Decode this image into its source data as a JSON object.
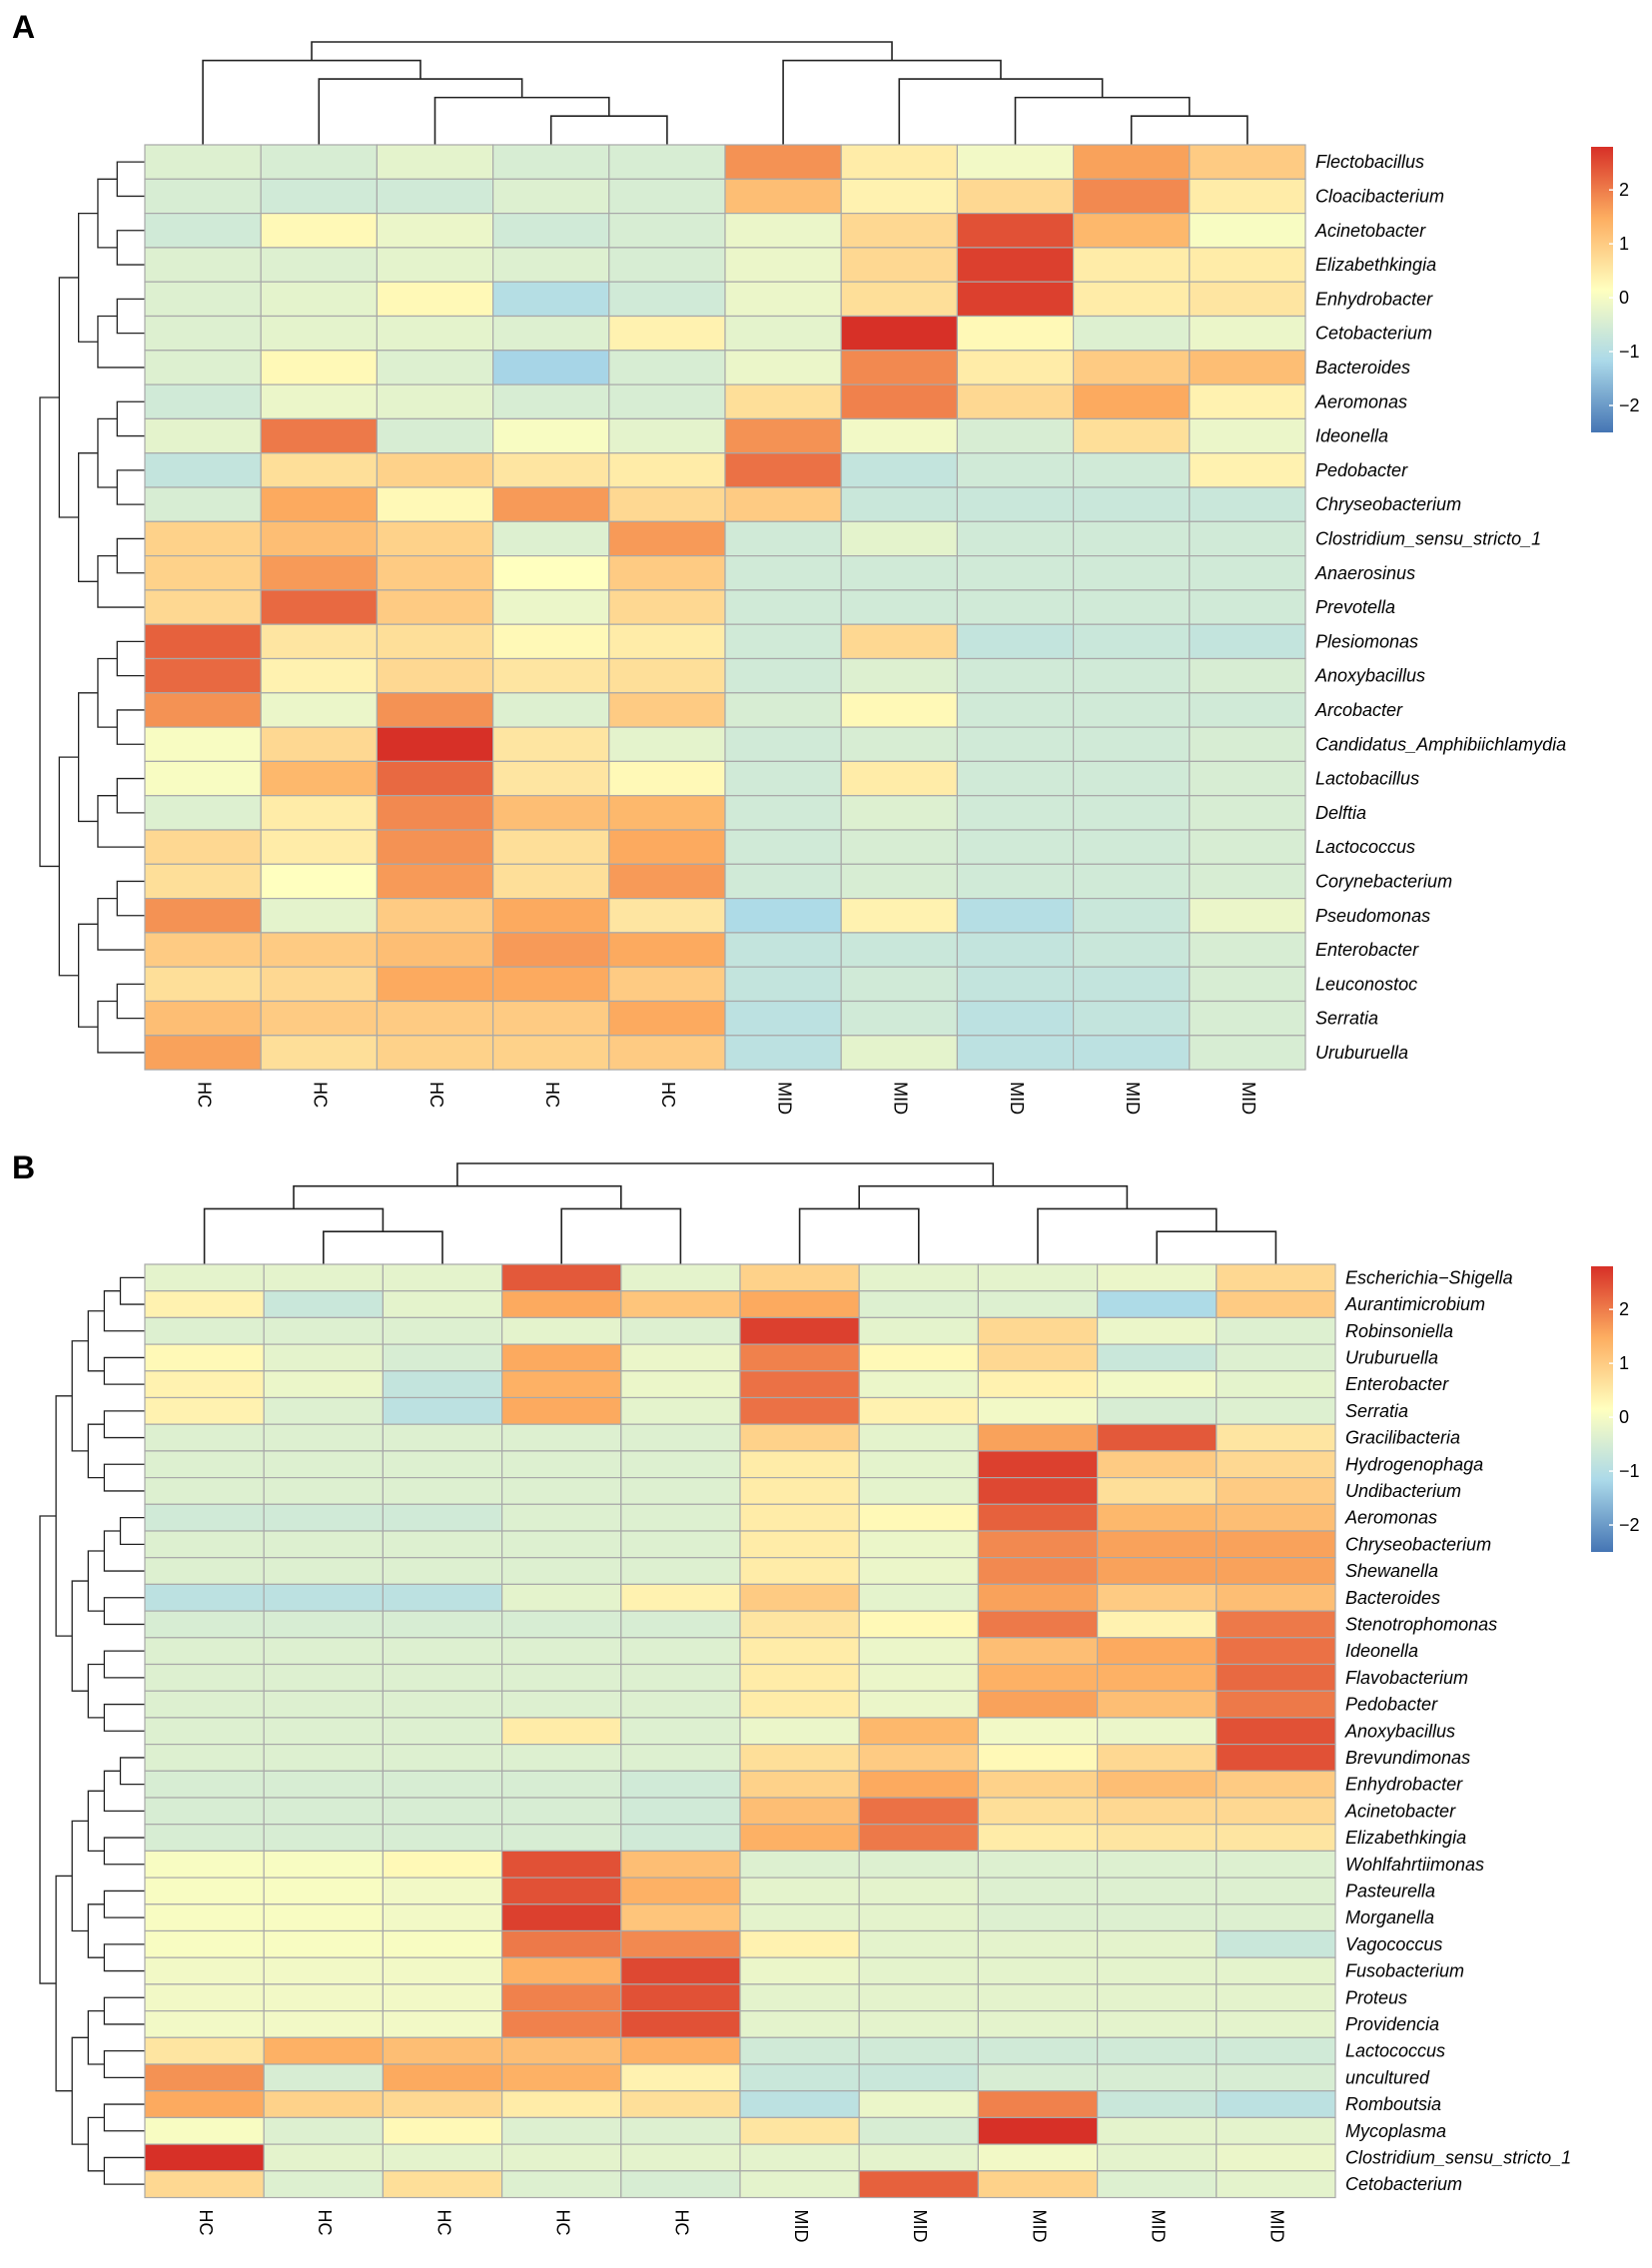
{
  "chart_data": [
    {
      "type": "heatmap",
      "panel": "A",
      "columns": [
        "HC",
        "HC",
        "HC",
        "HC",
        "HC",
        "MID",
        "MID",
        "MID",
        "MID",
        "MID"
      ],
      "rows": [
        "Flectobacillus",
        "Cloacibacterium",
        "Acinetobacter",
        "Elizabethkingia",
        "Enhydrobacter",
        "Cetobacterium",
        "Bacteroides",
        "Aeromonas",
        "Ideonella",
        "Pedobacter",
        "Chryseobacterium",
        "Clostridium_sensu_stricto_1",
        "Anaerosinus",
        "Prevotella",
        "Plesiomonas",
        "Anoxybacillus",
        "Arcobacter",
        "Candidatus_Amphibiichlamydia",
        "Lactobacillus",
        "Delftia",
        "Lactococcus",
        "Corynebacterium",
        "Pseudomonas",
        "Enterobacter",
        "Leuconostoc",
        "Serratia",
        "Uruburuella"
      ],
      "values": [
        [
          -0.5,
          -0.6,
          -0.4,
          -0.6,
          -0.6,
          1.6,
          0.3,
          -0.2,
          1.4,
          0.8
        ],
        [
          -0.6,
          -0.7,
          -0.7,
          -0.5,
          -0.6,
          1.0,
          0.2,
          0.6,
          1.7,
          0.3
        ],
        [
          -0.7,
          0.1,
          -0.3,
          -0.7,
          -0.6,
          -0.3,
          0.6,
          2.4,
          1.1,
          -0.1
        ],
        [
          -0.5,
          -0.5,
          -0.4,
          -0.5,
          -0.6,
          -0.3,
          0.6,
          2.6,
          0.3,
          0.3
        ],
        [
          -0.5,
          -0.4,
          0.1,
          -1.1,
          -0.7,
          -0.3,
          0.5,
          2.6,
          0.3,
          0.4
        ],
        [
          -0.5,
          -0.4,
          -0.4,
          -0.5,
          0.2,
          -0.4,
          2.9,
          0.1,
          -0.5,
          -0.3
        ],
        [
          -0.5,
          0.1,
          -0.5,
          -1.3,
          -0.6,
          -0.3,
          1.7,
          0.3,
          0.8,
          1.0
        ],
        [
          -0.7,
          -0.3,
          -0.4,
          -0.6,
          -0.6,
          0.5,
          1.8,
          0.6,
          1.3,
          0.2
        ],
        [
          -0.4,
          1.9,
          -0.6,
          -0.1,
          -0.4,
          1.6,
          -0.2,
          -0.6,
          0.5,
          -0.3
        ],
        [
          -0.9,
          0.5,
          0.7,
          0.4,
          0.3,
          2.0,
          -0.9,
          -0.7,
          -0.7,
          0.2
        ],
        [
          -0.6,
          1.3,
          0.1,
          1.5,
          0.6,
          0.8,
          -0.8,
          -0.8,
          -0.8,
          -0.8
        ],
        [
          0.7,
          1.0,
          0.7,
          -0.5,
          1.5,
          -0.7,
          -0.4,
          -0.7,
          -0.7,
          -0.7
        ],
        [
          0.7,
          1.5,
          0.8,
          0.0,
          0.8,
          -0.7,
          -0.7,
          -0.7,
          -0.7,
          -0.7
        ],
        [
          0.6,
          2.1,
          0.8,
          -0.3,
          0.6,
          -0.7,
          -0.7,
          -0.7,
          -0.7,
          -0.7
        ],
        [
          2.2,
          0.4,
          0.5,
          0.1,
          0.3,
          -0.7,
          0.6,
          -0.9,
          -0.8,
          -0.9
        ],
        [
          2.1,
          0.2,
          0.6,
          0.4,
          0.5,
          -0.7,
          -0.5,
          -0.7,
          -0.7,
          -0.6
        ],
        [
          1.6,
          -0.3,
          1.6,
          -0.5,
          0.8,
          -0.6,
          0.1,
          -0.7,
          -0.7,
          -0.7
        ],
        [
          -0.1,
          0.6,
          2.8,
          0.4,
          -0.4,
          -0.7,
          -0.6,
          -0.7,
          -0.7,
          -0.6
        ],
        [
          -0.1,
          1.1,
          2.1,
          0.4,
          0.1,
          -0.7,
          0.3,
          -0.7,
          -0.7,
          -0.6
        ],
        [
          -0.5,
          0.3,
          1.7,
          1.0,
          1.1,
          -0.7,
          -0.5,
          -0.7,
          -0.7,
          -0.6
        ],
        [
          0.6,
          0.3,
          1.6,
          0.5,
          1.3,
          -0.7,
          -0.6,
          -0.7,
          -0.7,
          -0.6
        ],
        [
          0.5,
          0.0,
          1.5,
          0.5,
          1.5,
          -0.7,
          -0.6,
          -0.7,
          -0.7,
          -0.6
        ],
        [
          1.6,
          -0.4,
          0.8,
          1.3,
          0.4,
          -1.2,
          0.2,
          -1.1,
          -0.8,
          -0.3
        ],
        [
          0.8,
          0.8,
          1.0,
          1.5,
          1.3,
          -0.9,
          -0.8,
          -0.9,
          -0.8,
          -0.6
        ],
        [
          0.5,
          0.6,
          1.3,
          1.3,
          0.8,
          -0.9,
          -0.7,
          -0.9,
          -0.9,
          -0.6
        ],
        [
          1.0,
          0.8,
          0.8,
          0.8,
          1.3,
          -1.0,
          -0.7,
          -1.0,
          -0.9,
          -0.6
        ],
        [
          1.4,
          0.5,
          0.7,
          0.7,
          0.8,
          -1.0,
          -0.4,
          -1.0,
          -1.0,
          -0.6
        ]
      ],
      "legend": {
        "ticks": [
          2,
          1,
          0,
          -1,
          -2
        ],
        "tick_labels": [
          "2",
          "1",
          "0",
          "−1",
          "−2"
        ],
        "range": [
          -2.5,
          2.8
        ]
      }
    },
    {
      "type": "heatmap",
      "panel": "B",
      "columns": [
        "HC",
        "HC",
        "HC",
        "HC",
        "HC",
        "MID",
        "MID",
        "MID",
        "MID",
        "MID"
      ],
      "rows": [
        "Escherichia−Shigella",
        "Aurantimicrobium",
        "Robinsoniella",
        "Uruburuella",
        "Enterobacter",
        "Serratia",
        "Gracilibacteria",
        "Hydrogenophaga",
        "Undibacterium",
        "Aeromonas",
        "Chryseobacterium",
        "Shewanella",
        "Bacteroides",
        "Stenotrophomonas",
        "Ideonella",
        "Flavobacterium",
        "Pedobacter",
        "Anoxybacillus",
        "Brevundimonas",
        "Enhydrobacter",
        "Acinetobacter",
        "Elizabethkingia",
        "Wohlfahrtiimonas",
        "Pasteurella",
        "Morganella",
        "Vagococcus",
        "Fusobacterium",
        "Proteus",
        "Providencia",
        "Lactococcus",
        "uncultured",
        "Romboutsia",
        "Mycoplasma",
        "Clostridium_sensu_stricto_1",
        "Cetobacterium"
      ],
      "values": [
        [
          -0.4,
          -0.4,
          -0.4,
          2.3,
          -0.4,
          0.7,
          -0.4,
          -0.4,
          -0.3,
          0.6
        ],
        [
          0.2,
          -0.8,
          -0.4,
          1.3,
          0.9,
          1.3,
          -0.5,
          -0.5,
          -1.2,
          0.8
        ],
        [
          -0.5,
          -0.5,
          -0.5,
          -0.4,
          -0.5,
          2.6,
          -0.4,
          0.6,
          -0.3,
          -0.5
        ],
        [
          0.1,
          -0.4,
          -0.6,
          1.3,
          -0.3,
          1.8,
          0.1,
          0.6,
          -0.8,
          -0.5
        ],
        [
          0.2,
          -0.3,
          -0.9,
          1.2,
          -0.3,
          2.0,
          -0.3,
          0.2,
          -0.2,
          -0.4
        ],
        [
          0.2,
          -0.5,
          -1.0,
          1.3,
          -0.4,
          2.0,
          0.2,
          -0.2,
          -0.6,
          -0.5
        ],
        [
          -0.5,
          -0.5,
          -0.5,
          -0.5,
          -0.5,
          0.7,
          -0.4,
          1.4,
          2.3,
          0.4
        ],
        [
          -0.5,
          -0.5,
          -0.5,
          -0.5,
          -0.5,
          0.3,
          -0.4,
          2.6,
          0.8,
          0.6
        ],
        [
          -0.5,
          -0.5,
          -0.5,
          -0.5,
          -0.5,
          0.3,
          -0.4,
          2.5,
          0.5,
          0.8
        ],
        [
          -0.7,
          -0.7,
          -0.7,
          -0.5,
          -0.5,
          0.3,
          0.1,
          2.2,
          1.1,
          1.0
        ],
        [
          -0.5,
          -0.5,
          -0.5,
          -0.5,
          -0.5,
          0.3,
          -0.3,
          1.7,
          1.4,
          1.4
        ],
        [
          -0.5,
          -0.5,
          -0.5,
          -0.5,
          -0.5,
          0.3,
          -0.3,
          1.7,
          1.4,
          1.4
        ],
        [
          -1.0,
          -1.0,
          -1.0,
          -0.4,
          0.2,
          0.8,
          -0.4,
          1.4,
          0.8,
          1.0
        ],
        [
          -0.6,
          -0.6,
          -0.6,
          -0.6,
          -0.6,
          0.4,
          0.1,
          1.9,
          0.2,
          1.9
        ],
        [
          -0.5,
          -0.5,
          -0.5,
          -0.5,
          -0.5,
          0.3,
          -0.3,
          1.0,
          1.3,
          2.0
        ],
        [
          -0.5,
          -0.5,
          -0.5,
          -0.5,
          -0.5,
          0.3,
          -0.3,
          1.2,
          1.2,
          2.1
        ],
        [
          -0.5,
          -0.5,
          -0.5,
          -0.5,
          -0.5,
          0.3,
          -0.3,
          1.4,
          1.0,
          1.9
        ],
        [
          -0.5,
          -0.5,
          -0.5,
          0.3,
          -0.5,
          -0.3,
          1.1,
          -0.2,
          -0.3,
          2.4
        ],
        [
          -0.5,
          -0.5,
          -0.5,
          -0.5,
          -0.5,
          0.5,
          0.8,
          0.1,
          0.6,
          2.4
        ],
        [
          -0.6,
          -0.6,
          -0.6,
          -0.6,
          -0.7,
          0.7,
          1.3,
          0.7,
          1.0,
          0.8
        ],
        [
          -0.6,
          -0.6,
          -0.6,
          -0.6,
          -0.7,
          1.0,
          2.0,
          0.5,
          0.6,
          0.6
        ],
        [
          -0.6,
          -0.6,
          -0.6,
          -0.6,
          -0.7,
          1.2,
          1.9,
          0.3,
          0.4,
          0.4
        ],
        [
          -0.1,
          -0.1,
          0.1,
          2.4,
          1.0,
          -0.5,
          -0.5,
          -0.5,
          -0.5,
          -0.5
        ],
        [
          -0.1,
          -0.1,
          -0.2,
          2.4,
          1.2,
          -0.4,
          -0.4,
          -0.5,
          -0.5,
          -0.5
        ],
        [
          -0.1,
          -0.1,
          -0.2,
          2.6,
          0.9,
          -0.4,
          -0.4,
          -0.5,
          -0.5,
          -0.5
        ],
        [
          -0.1,
          -0.1,
          -0.1,
          1.9,
          1.7,
          0.2,
          -0.4,
          -0.4,
          -0.4,
          -0.8
        ],
        [
          -0.2,
          -0.2,
          -0.2,
          1.2,
          2.5,
          -0.3,
          -0.4,
          -0.4,
          -0.4,
          -0.4
        ],
        [
          -0.2,
          -0.2,
          -0.2,
          1.8,
          2.4,
          -0.4,
          -0.4,
          -0.4,
          -0.4,
          -0.4
        ],
        [
          -0.2,
          -0.2,
          -0.2,
          1.8,
          2.4,
          -0.4,
          -0.4,
          -0.4,
          -0.4,
          -0.4
        ],
        [
          0.4,
          1.2,
          1.0,
          1.0,
          1.2,
          -0.7,
          -0.7,
          -0.7,
          -0.7,
          -0.7
        ],
        [
          1.6,
          -0.6,
          1.3,
          1.2,
          0.2,
          -0.8,
          -0.8,
          -0.6,
          -0.6,
          -0.6
        ],
        [
          1.3,
          0.7,
          0.6,
          0.3,
          0.5,
          -1.0,
          -0.3,
          1.8,
          -0.8,
          -1.0
        ],
        [
          -0.1,
          -0.5,
          0.1,
          -0.5,
          -0.5,
          0.4,
          -0.6,
          2.8,
          -0.4,
          -0.4
        ],
        [
          2.8,
          -0.4,
          -0.4,
          -0.4,
          -0.4,
          -0.4,
          -0.4,
          -0.2,
          -0.4,
          -0.3
        ],
        [
          0.6,
          -0.5,
          0.5,
          -0.5,
          -0.6,
          -0.4,
          2.2,
          0.7,
          -0.5,
          -0.4
        ]
      ],
      "legend": {
        "ticks": [
          2,
          1,
          0,
          -1,
          -2
        ],
        "tick_labels": [
          "2",
          "1",
          "0",
          "−1",
          "−2"
        ],
        "range": [
          -2.5,
          2.8
        ]
      }
    }
  ]
}
